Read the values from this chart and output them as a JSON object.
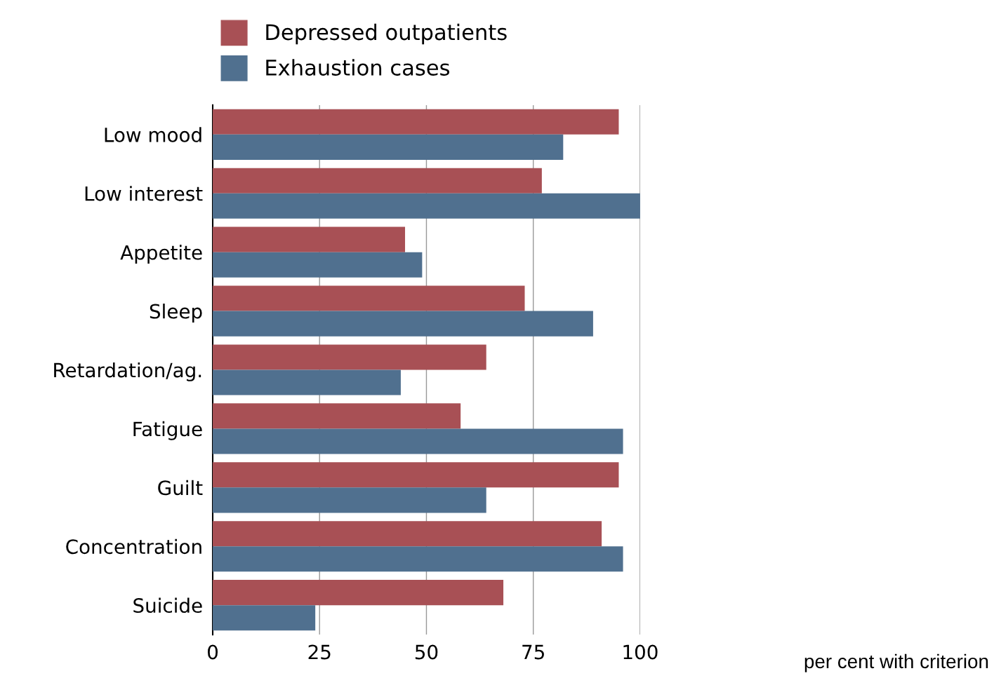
{
  "chart_data": {
    "type": "bar",
    "orientation": "horizontal",
    "categories": [
      "Low mood",
      "Low interest",
      "Appetite",
      "Sleep",
      "Retardation/ag.",
      "Fatigue",
      "Guilt",
      "Concentration",
      "Suicide"
    ],
    "series": [
      {
        "name": "Depressed outpatients",
        "color": "#a85055",
        "values": [
          95,
          77,
          45,
          73,
          64,
          58,
          95,
          91,
          68
        ]
      },
      {
        "name": "Exhaustion cases",
        "color": "#50708f",
        "values": [
          82,
          100,
          49,
          89,
          44,
          96,
          64,
          96,
          24
        ]
      }
    ],
    "xlim": [
      0,
      100
    ],
    "xticks": [
      0,
      25,
      50,
      75,
      100
    ],
    "annotations": [
      "per cent with criterion"
    ],
    "grid": "x",
    "legend": "top"
  }
}
